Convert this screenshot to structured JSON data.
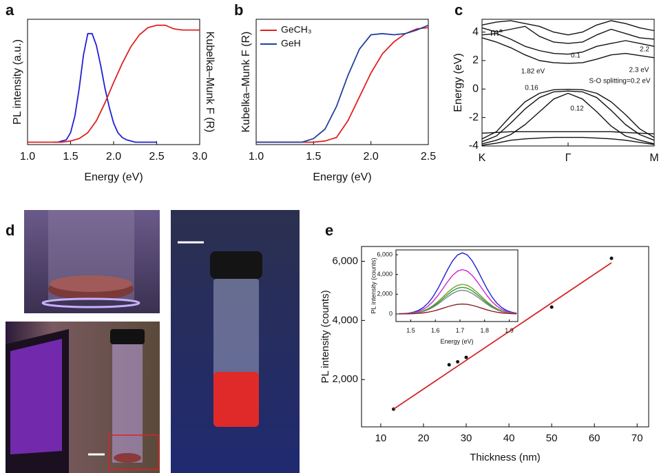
{
  "chart_data": [
    {
      "type": "line",
      "label": "a",
      "xlabel": "Energy (eV)",
      "ylabel": "PL intensity (a.u.)",
      "y2label": "Kubelka–Munk F (R)",
      "xlim": [
        1.0,
        3.0
      ],
      "ylim": [
        0,
        1.05
      ],
      "xticks": [
        {
          "value": 1.0,
          "label": "1.0"
        },
        1.5,
        {
          "value": 2.0,
          "label": "2.0"
        },
        2.5,
        {
          "value": 3.0,
          "label": "3.0"
        }
      ],
      "series": [
        {
          "color": "#1f1fd6",
          "x": [
            1.3,
            1.35,
            1.4,
            1.45,
            1.5,
            1.55,
            1.6,
            1.65,
            1.7,
            1.75,
            1.8,
            1.85,
            1.9,
            1.95,
            2.0,
            2.05,
            2.1,
            2.15,
            2.2,
            2.25,
            2.3,
            2.35,
            2.4,
            2.45,
            2.5
          ],
          "values": [
            0.02,
            0.02,
            0.03,
            0.04,
            0.1,
            0.24,
            0.47,
            0.75,
            0.93,
            0.93,
            0.83,
            0.66,
            0.47,
            0.31,
            0.18,
            0.1,
            0.06,
            0.04,
            0.03,
            0.02,
            0.02,
            0.02,
            0.02,
            0.02,
            0.02
          ]
        },
        {
          "color": "#e02020",
          "x": [
            1.0,
            1.1,
            1.2,
            1.3,
            1.4,
            1.5,
            1.6,
            1.7,
            1.8,
            1.9,
            2.0,
            2.1,
            2.2,
            2.3,
            2.4,
            2.5,
            2.6,
            2.7,
            2.8,
            2.9,
            3.0
          ],
          "values": [
            0.02,
            0.02,
            0.02,
            0.02,
            0.02,
            0.03,
            0.05,
            0.1,
            0.2,
            0.35,
            0.52,
            0.68,
            0.82,
            0.92,
            0.98,
            1.0,
            1.0,
            0.97,
            0.96,
            0.96,
            0.96
          ]
        }
      ]
    },
    {
      "type": "line",
      "label": "b",
      "xlabel": "Energy (eV)",
      "ylabel": "Kubelka–Munk F (R)",
      "xlim": [
        1.0,
        2.5
      ],
      "ylim": [
        0,
        1.05
      ],
      "xticks": [
        {
          "value": 1.0,
          "label": "1.0"
        },
        1.5,
        {
          "value": 2.0,
          "label": "2.0"
        },
        2.5
      ],
      "x": [
        1.0,
        1.1,
        1.2,
        1.3,
        1.4,
        1.5,
        1.6,
        1.7,
        1.8,
        1.9,
        2.0,
        2.1,
        2.2,
        2.3,
        2.4,
        2.5
      ],
      "series": [
        {
          "name": "GeCH₃",
          "color": "#e02020",
          "values": [
            0.02,
            0.02,
            0.02,
            0.02,
            0.02,
            0.02,
            0.03,
            0.06,
            0.2,
            0.4,
            0.6,
            0.76,
            0.86,
            0.93,
            0.97,
            0.98
          ]
        },
        {
          "name": "GeH",
          "color": "#1f3f9f",
          "values": [
            0.02,
            0.02,
            0.02,
            0.02,
            0.02,
            0.05,
            0.13,
            0.32,
            0.58,
            0.8,
            0.92,
            0.93,
            0.92,
            0.93,
            0.96,
            1.0
          ]
        }
      ],
      "legend": "upper left"
    },
    {
      "type": "line",
      "label": "c",
      "ylabel": "Energy (eV)",
      "xlim": [
        0,
        2
      ],
      "ylim": [
        -4,
        4.9
      ],
      "xticks": [
        {
          "value": 0,
          "label": "K"
        },
        {
          "value": 1,
          "label": "Γ"
        },
        {
          "value": 2,
          "label": "M"
        }
      ],
      "yticks": [
        -4,
        -2,
        0,
        2,
        4
      ],
      "x": [
        0,
        0.167,
        0.333,
        0.5,
        0.667,
        0.833,
        1,
        1.167,
        1.333,
        1.5,
        1.667,
        1.833,
        2
      ],
      "series": [
        {
          "color": "#111",
          "values": [
            -3.5,
            -3.0,
            -1.9,
            -0.9,
            -0.3,
            -0.05,
            -0.02,
            -0.05,
            -0.3,
            -0.9,
            -1.8,
            -2.8,
            -3.4
          ]
        },
        {
          "color": "#111",
          "values": [
            -3.7,
            -3.3,
            -2.4,
            -1.4,
            -0.6,
            -0.2,
            -0.14,
            -0.2,
            -0.6,
            -1.5,
            -2.5,
            -3.2,
            -3.6
          ]
        },
        {
          "color": "#111",
          "values": [
            -3.85,
            -3.6,
            -3.2,
            -2.5,
            -1.6,
            -0.7,
            -0.3,
            -0.7,
            -1.6,
            -2.6,
            -3.3,
            -3.6,
            -3.85
          ]
        },
        {
          "color": "#111",
          "values": [
            -3.1,
            -3.05,
            -3.0,
            -3.0,
            -3.0,
            -3.0,
            -3.0,
            -3.0,
            -3.0,
            -3.0,
            -3.05,
            -3.1,
            -3.15
          ]
        },
        {
          "color": "#111",
          "values": [
            -3.95,
            -3.8,
            -3.6,
            -3.5,
            -3.45,
            -3.4,
            -3.4,
            -3.4,
            -3.45,
            -3.5,
            -3.6,
            -3.75,
            -3.9
          ]
        },
        {
          "color": "#111",
          "values": [
            3.6,
            3.3,
            2.9,
            2.4,
            2.0,
            1.85,
            1.8,
            1.85,
            2.1,
            2.4,
            2.5,
            2.35,
            2.2
          ]
        },
        {
          "color": "#111",
          "values": [
            3.8,
            3.9,
            3.5,
            3.0,
            2.7,
            2.5,
            2.45,
            2.6,
            3.0,
            3.2,
            3.4,
            3.2,
            3.0
          ]
        },
        {
          "color": "#111",
          "values": [
            4.3,
            4.0,
            4.2,
            4.4,
            3.7,
            3.3,
            3.2,
            3.3,
            3.8,
            4.2,
            3.9,
            3.6,
            3.5
          ]
        },
        {
          "color": "#111",
          "values": [
            4.5,
            4.7,
            4.8,
            4.6,
            4.4,
            4.0,
            3.8,
            4.0,
            4.5,
            4.8,
            4.6,
            4.3,
            4.1
          ]
        }
      ],
      "annotations": [
        {
          "text": "m*",
          "color": "#e02020"
        },
        {
          "text": "0.1",
          "color": "#e02020"
        },
        {
          "text": "2.2",
          "color": "#e02020"
        },
        {
          "text": "1.82 eV",
          "color": "#111"
        },
        {
          "text": "2.3 eV",
          "color": "#111"
        },
        {
          "text": "0.16",
          "color": "#e02020"
        },
        {
          "text": "S-O splitting=0.2 eV",
          "color": "#111"
        },
        {
          "text": "0.12",
          "color": "#e02020"
        }
      ]
    },
    {
      "type": "image",
      "label": "d"
    },
    {
      "type": "scatter",
      "label": "e",
      "xlabel": "Thickness (nm)",
      "ylabel": "PL intensity (counts)",
      "xlim": [
        5.5,
        72.7
      ],
      "ylim": [
        400,
        6500
      ],
      "xticks": [
        10,
        20,
        30,
        40,
        50,
        60,
        70
      ],
      "yticks": [
        {
          "value": 2000,
          "label": "2,000"
        },
        {
          "value": 4000,
          "label": "4,000"
        },
        {
          "value": 6000,
          "label": "6,000"
        }
      ],
      "series": [
        {
          "mode": "markers",
          "color": "#111",
          "x": [
            13,
            26,
            28,
            30,
            50,
            64
          ],
          "values": [
            1000,
            2500,
            2600,
            2750,
            4450,
            6100
          ]
        },
        {
          "mode": "line",
          "color": "#d62728",
          "x": [
            13,
            64
          ],
          "values": [
            1000,
            5950
          ]
        }
      ],
      "inset": {
        "type": "line",
        "xlabel": "Energy (eV)",
        "ylabel": "PL intensity (counts)",
        "xlim": [
          1.44,
          1.935
        ],
        "ylim": [
          -770,
          6490
        ],
        "xticks": [
          1.5,
          1.6,
          1.7,
          1.8,
          1.9
        ],
        "yticks": [
          0,
          {
            "value": 2000,
            "label": "2,000"
          },
          {
            "value": 4000,
            "label": "4,000"
          },
          {
            "value": 6000,
            "label": "6,000"
          }
        ],
        "x": [
          1.45,
          1.47,
          1.49,
          1.51,
          1.53,
          1.55,
          1.57,
          1.59,
          1.61,
          1.63,
          1.65,
          1.67,
          1.69,
          1.71,
          1.73,
          1.75,
          1.77,
          1.79,
          1.81,
          1.83,
          1.85,
          1.87,
          1.89,
          1.91,
          1.93
        ],
        "series": [
          {
            "color": "#1f1fd6",
            "values": [
              20,
              40,
              80,
              180,
              350,
              630,
              1090,
              1720,
              2550,
              3510,
              4500,
              5380,
              5980,
              6200,
              5980,
              5380,
              4500,
              3510,
              2550,
              1720,
              1090,
              630,
              350,
              180,
              80
            ]
          },
          {
            "color": "#d020d0",
            "values": [
              10,
              30,
              60,
              130,
              250,
              460,
              790,
              1250,
              1850,
              2550,
              3270,
              3900,
              4340,
              4500,
              4340,
              3900,
              3270,
              2550,
              1850,
              1250,
              790,
              460,
              250,
              130,
              60
            ]
          },
          {
            "color": "#7a9a20",
            "values": [
              10,
              20,
              40,
              90,
              170,
              310,
              530,
              830,
              1230,
              1700,
              2180,
              2600,
              2900,
              3000,
              2900,
              2600,
              2180,
              1700,
              1230,
              830,
              530,
              310,
              170,
              90,
              40
            ]
          },
          {
            "color": "#20a040",
            "values": [
              10,
              20,
              40,
              80,
              150,
              280,
              470,
              750,
              1110,
              1530,
              1960,
              2340,
              2610,
              2700,
              2610,
              2340,
              1960,
              1530,
              1110,
              750,
              470,
              280,
              150,
              80,
              40
            ]
          },
          {
            "color": "#808080",
            "values": [
              10,
              10,
              30,
              70,
              130,
              250,
              420,
              670,
              990,
              1360,
              1740,
              2080,
              2320,
              2400,
              2320,
              2080,
              1740,
              1360,
              990,
              670,
              420,
              250,
              130,
              70,
              30
            ]
          },
          {
            "color": "#8b1a1a",
            "values": [
              0,
              10,
              10,
              30,
              60,
              100,
              180,
              280,
              410,
              570,
              730,
              870,
              970,
              1000,
              970,
              870,
              730,
              570,
              410,
              280,
              180,
              100,
              60,
              30,
              10
            ]
          }
        ]
      }
    }
  ]
}
